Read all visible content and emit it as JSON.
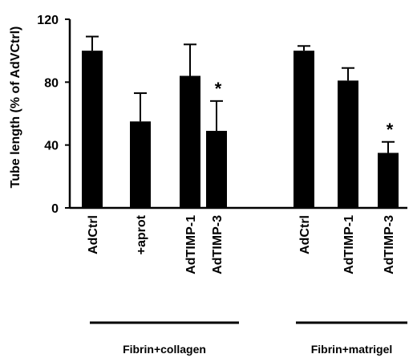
{
  "chart_data": {
    "type": "bar",
    "ylabel": "Tube length (% of AdVCtrl)",
    "ylim": [
      0,
      120
    ],
    "yticks": [
      0,
      40,
      80,
      120
    ],
    "bar_color": "#000000",
    "groups": [
      {
        "label": "Fibrin+collagen",
        "bars": [
          {
            "category": "AdCtrl",
            "value": 100,
            "error": 9,
            "significant": false
          },
          {
            "category": "+aprot",
            "value": 55,
            "error": 18,
            "significant": false
          },
          {
            "category": "AdTIMP-1",
            "value": 84,
            "error": 20,
            "significant": false
          },
          {
            "category": "AdTIMP-3",
            "value": 49,
            "error": 19,
            "significant": true
          }
        ]
      },
      {
        "label": "Fibrin+matrigel",
        "bars": [
          {
            "category": "AdCtrl",
            "value": 100,
            "error": 3,
            "significant": false
          },
          {
            "category": "AdTIMP-1",
            "value": 81,
            "error": 8,
            "significant": false
          },
          {
            "category": "AdTIMP-3",
            "value": 35,
            "error": 7,
            "significant": true
          }
        ]
      }
    ],
    "significance_marker": "*"
  }
}
